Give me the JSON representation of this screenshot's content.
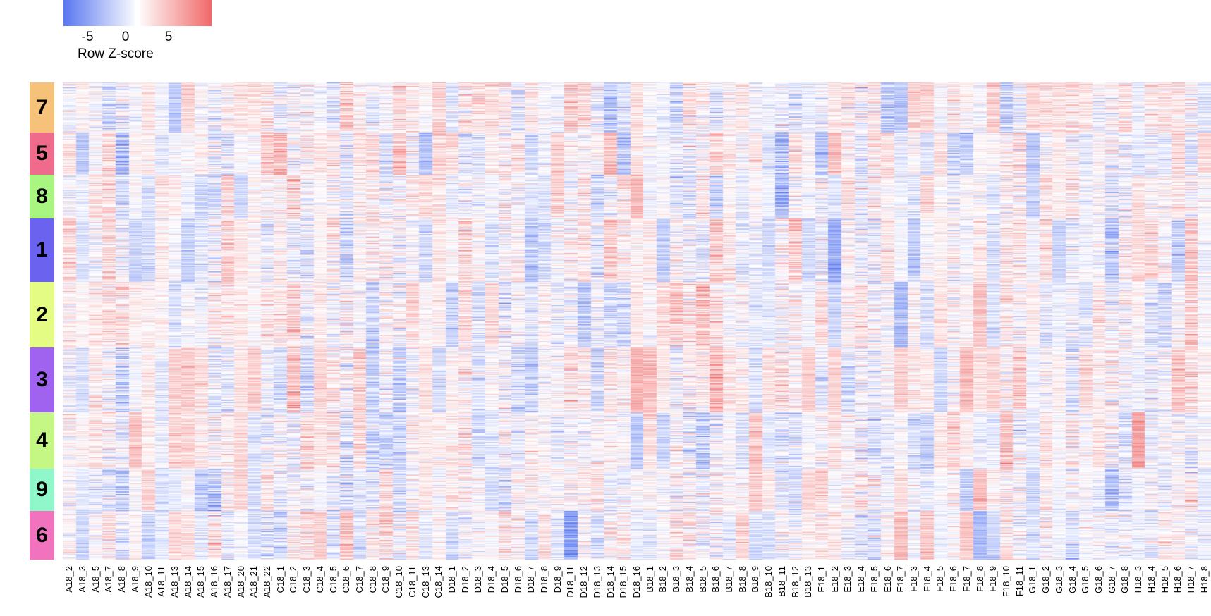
{
  "chart_data": {
    "type": "heatmap",
    "title": "",
    "xlabel": "",
    "ylabel": "",
    "colorbar": {
      "title": "Row Z-score",
      "ticks": [
        "-5",
        "0",
        "5"
      ],
      "tick_values": [
        -5,
        0,
        5
      ],
      "range": [
        -8.5,
        8.5
      ],
      "low_color": "#5a78f0",
      "mid_color": "#ffffff",
      "high_color": "#f06a6a"
    },
    "columns": [
      "A18_2",
      "A18_3",
      "A18_5",
      "A18_7",
      "A18_8",
      "A18_9",
      "A18_10",
      "A18_11",
      "A18_13",
      "A18_14",
      "A18_15",
      "A18_16",
      "A18_17",
      "A18_20",
      "A18_21",
      "A18_22",
      "C18_1",
      "C18_2",
      "C18_3",
      "C18_4",
      "C18_5",
      "C18_6",
      "C18_7",
      "C18_8",
      "C18_9",
      "C18_10",
      "C18_11",
      "C18_13",
      "C18_14",
      "D18_1",
      "D18_2",
      "D18_3",
      "D18_4",
      "D18_5",
      "D18_6",
      "D18_7",
      "D18_8",
      "D18_9",
      "D18_11",
      "D18_12",
      "D18_13",
      "D18_14",
      "D18_15",
      "D18_16",
      "B18_1",
      "B18_2",
      "B18_3",
      "B18_4",
      "B18_5",
      "B18_6",
      "B18_7",
      "B18_8",
      "B18_9",
      "B18_10",
      "B18_11",
      "B18_12",
      "B18_13",
      "E18_1",
      "E18_2",
      "E18_3",
      "E18_4",
      "E18_5",
      "E18_6",
      "E18_7",
      "F18_3",
      "F18_4",
      "F18_5",
      "F18_6",
      "F18_7",
      "F18_8",
      "F18_9",
      "F18_10",
      "F18_11",
      "G18_1",
      "G18_2",
      "G18_3",
      "G18_4",
      "G18_5",
      "G18_6",
      "G18_7",
      "G18_8",
      "H18_3",
      "H18_4",
      "H18_5",
      "H18_6",
      "H18_7",
      "H18_8"
    ],
    "row_clusters": [
      {
        "label": "7",
        "color": "#f6c27a",
        "fraction": 0.105
      },
      {
        "label": "5",
        "color": "#ee6b8b",
        "fraction": 0.089
      },
      {
        "label": "8",
        "color": "#a8f57f",
        "fraction": 0.092
      },
      {
        "label": "1",
        "color": "#6b63ef",
        "fraction": 0.133
      },
      {
        "label": "2",
        "color": "#e4fb84",
        "fraction": 0.137
      },
      {
        "label": "3",
        "color": "#a063ef",
        "fraction": 0.136
      },
      {
        "label": "4",
        "color": "#c4f784",
        "fraction": 0.118
      },
      {
        "label": "9",
        "color": "#8ff7c9",
        "fraction": 0.088
      },
      {
        "label": "6",
        "color": "#f173bd",
        "fraction": 0.102
      }
    ],
    "notes": "Dense gene-expression heatmap; cell values approximated procedurally (Row Z-score)."
  }
}
